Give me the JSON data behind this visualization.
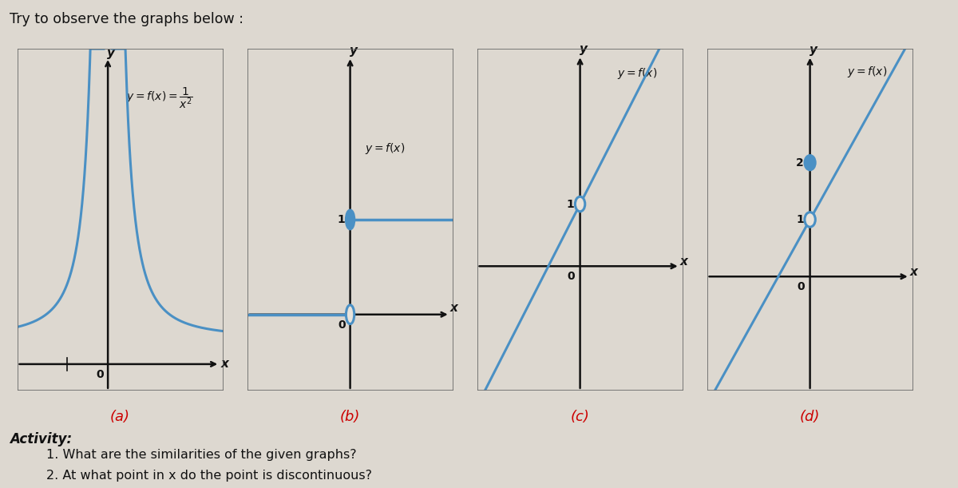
{
  "title": "Try to observe the graphs below :",
  "bg_color": "#ddd8d0",
  "box_bg": "#e8e3db",
  "line_color": "#4a90c4",
  "axis_color": "#111111",
  "label_color": "#cc0000",
  "graph_labels": [
    "(a)",
    "(b)",
    "(c)",
    "(d)"
  ],
  "activity_text": "Activity:",
  "q1": "1. What are the similarities of the given graphs?",
  "q2": "2. At what point in x do the point is discontinuous?"
}
